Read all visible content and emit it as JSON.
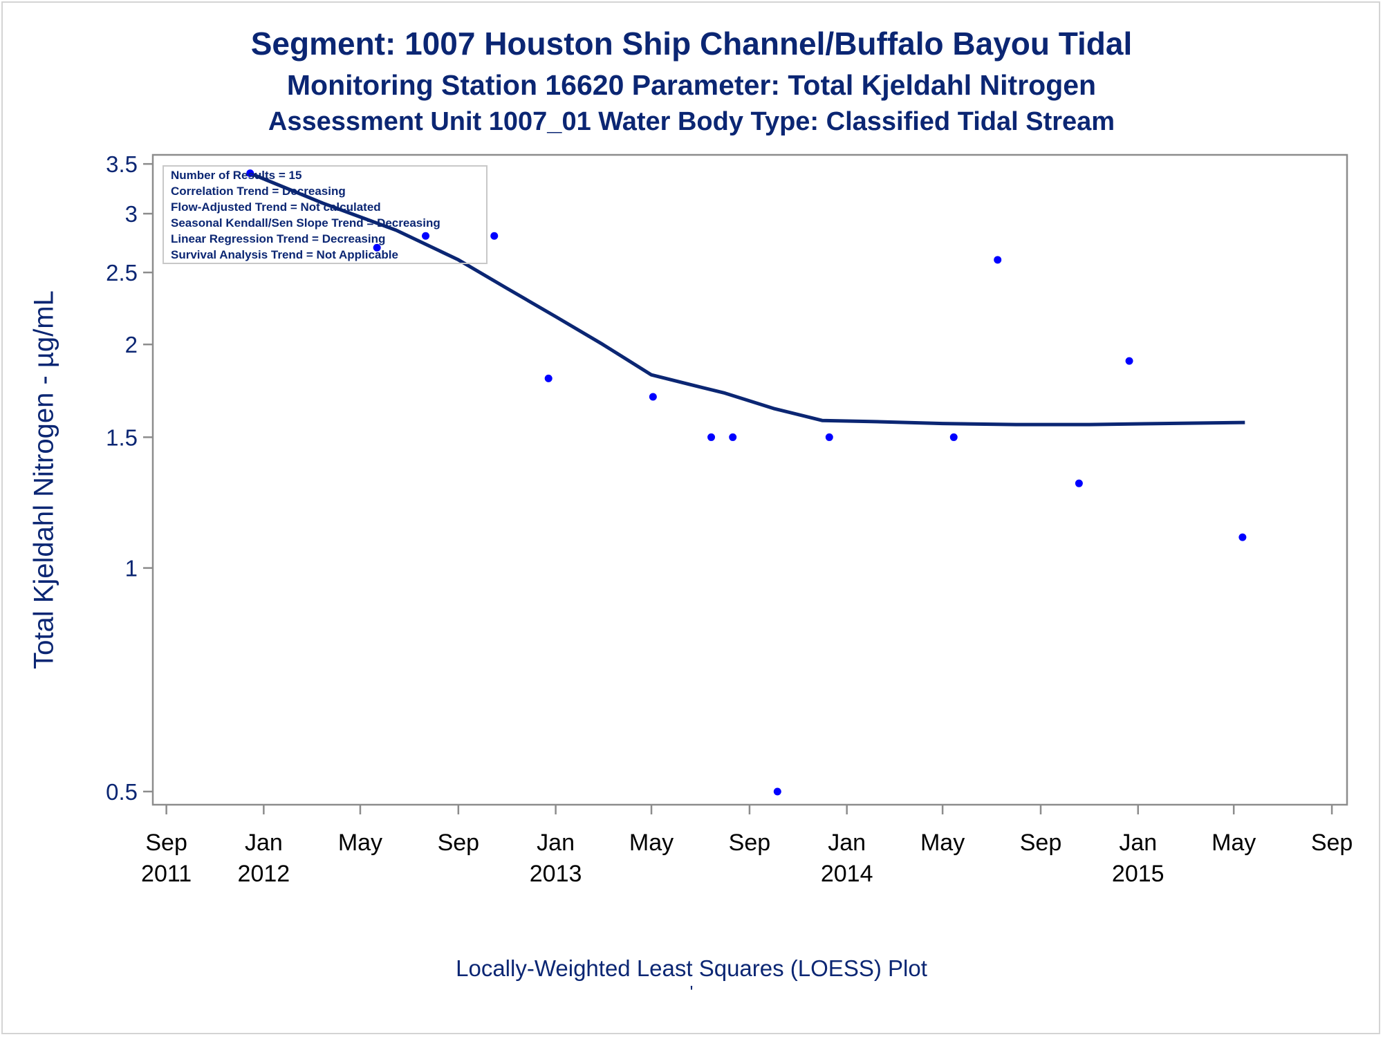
{
  "titles": {
    "line1": "Segment: 1007  Houston Ship Channel/Buffalo Bayou Tidal",
    "line2": "Monitoring Station 16620 Parameter: Total Kjeldahl Nitrogen",
    "line3": "Assessment Unit 1007_01   Water Body Type: Classified Tidal Stream"
  },
  "footnote": "Locally-Weighted Least Squares (LOESS) Plot",
  "footnote_mark": "'",
  "chart_data": {
    "type": "scatter",
    "ylabel": "Total Kjeldahl Nitrogen -  µg/mL",
    "yscale": "log",
    "ylim": [
      0.48,
      3.6
    ],
    "xlim": [
      "2011-08-15",
      "2015-09-20"
    ],
    "y_ticks": [
      {
        "value": 0.5,
        "label": "0.5"
      },
      {
        "value": 1,
        "label": "1"
      },
      {
        "value": 1.5,
        "label": "1.5"
      },
      {
        "value": 2,
        "label": "2"
      },
      {
        "value": 2.5,
        "label": "2.5"
      },
      {
        "value": 3,
        "label": "3"
      },
      {
        "value": 3.5,
        "label": "3.5"
      }
    ],
    "x_ticks": [
      {
        "date": "2011-09-01",
        "month": "Sep",
        "year": "2011"
      },
      {
        "date": "2012-01-01",
        "month": "Jan",
        "year": "2012"
      },
      {
        "date": "2012-05-01",
        "month": "May",
        "year": ""
      },
      {
        "date": "2012-09-01",
        "month": "Sep",
        "year": ""
      },
      {
        "date": "2013-01-01",
        "month": "Jan",
        "year": "2013"
      },
      {
        "date": "2013-05-01",
        "month": "May",
        "year": ""
      },
      {
        "date": "2013-09-01",
        "month": "Sep",
        "year": ""
      },
      {
        "date": "2014-01-01",
        "month": "Jan",
        "year": "2014"
      },
      {
        "date": "2014-05-01",
        "month": "May",
        "year": ""
      },
      {
        "date": "2014-09-01",
        "month": "Sep",
        "year": ""
      },
      {
        "date": "2015-01-01",
        "month": "Jan",
        "year": "2015"
      },
      {
        "date": "2015-05-01",
        "month": "May",
        "year": ""
      },
      {
        "date": "2015-09-01",
        "month": "Sep",
        "year": ""
      }
    ],
    "points": [
      {
        "date": "2011-12-15",
        "value": 3.4
      },
      {
        "date": "2012-05-22",
        "value": 2.7
      },
      {
        "date": "2012-07-22",
        "value": 2.8
      },
      {
        "date": "2012-10-16",
        "value": 2.8
      },
      {
        "date": "2012-12-23",
        "value": 1.8
      },
      {
        "date": "2013-05-03",
        "value": 1.7
      },
      {
        "date": "2013-07-15",
        "value": 1.5
      },
      {
        "date": "2013-08-11",
        "value": 1.5
      },
      {
        "date": "2013-10-06",
        "value": 0.5
      },
      {
        "date": "2013-12-10",
        "value": 1.5
      },
      {
        "date": "2014-05-15",
        "value": 1.5
      },
      {
        "date": "2014-07-09",
        "value": 2.6
      },
      {
        "date": "2014-10-19",
        "value": 1.3
      },
      {
        "date": "2014-12-21",
        "value": 1.9
      },
      {
        "date": "2015-05-12",
        "value": 1.1
      }
    ],
    "loess": [
      {
        "date": "2011-12-15",
        "value": 3.4
      },
      {
        "date": "2012-03-15",
        "value": 3.1
      },
      {
        "date": "2012-06-15",
        "value": 2.85
      },
      {
        "date": "2012-09-01",
        "value": 2.6
      },
      {
        "date": "2012-11-01",
        "value": 2.38
      },
      {
        "date": "2013-01-01",
        "value": 2.18
      },
      {
        "date": "2013-03-01",
        "value": 2.0
      },
      {
        "date": "2013-05-01",
        "value": 1.82
      },
      {
        "date": "2013-06-15",
        "value": 1.77
      },
      {
        "date": "2013-08-01",
        "value": 1.72
      },
      {
        "date": "2013-10-01",
        "value": 1.64
      },
      {
        "date": "2013-12-01",
        "value": 1.58
      },
      {
        "date": "2014-02-01",
        "value": 1.575
      },
      {
        "date": "2014-05-01",
        "value": 1.565
      },
      {
        "date": "2014-08-01",
        "value": 1.56
      },
      {
        "date": "2014-11-01",
        "value": 1.56
      },
      {
        "date": "2015-02-01",
        "value": 1.565
      },
      {
        "date": "2015-05-15",
        "value": 1.57
      }
    ],
    "line_color": "#0b2673",
    "point_color": "#0000ff",
    "legend_position": "top-left",
    "inset_lines": [
      "Number of Results = 15",
      "Correlation Trend = Decreasing",
      "Flow-Adjusted Trend = Not calculated",
      "Seasonal Kendall/Sen Slope Trend = Decreasing",
      "Linear Regression Trend = Decreasing",
      "Survival Analysis Trend = Not Applicable"
    ]
  }
}
